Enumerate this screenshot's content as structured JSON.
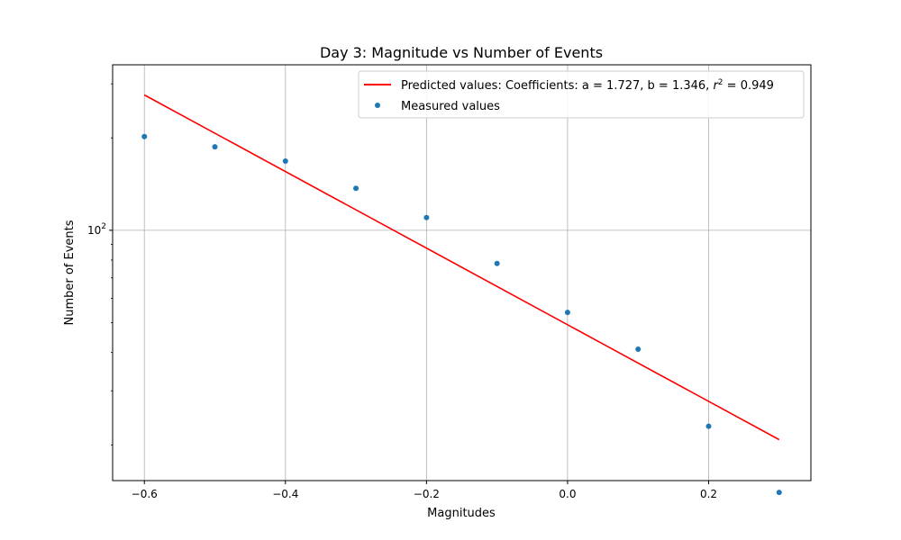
{
  "chart_data": {
    "type": "scatter",
    "title": "Day 3: Magnitude vs Number of Events",
    "xlabel": "Magnitudes",
    "ylabel": "Number of Events",
    "x_scale": "linear",
    "y_scale": "log",
    "xlim": [
      -0.645,
      0.345
    ],
    "ylim": [
      15.3,
      346
    ],
    "x_ticks": [
      -0.6,
      -0.4,
      -0.2,
      0.0,
      0.2
    ],
    "x_tick_labels": [
      "−0.6",
      "−0.4",
      "−0.2",
      "0.0",
      "0.2"
    ],
    "y_ticks": [
      100
    ],
    "y_tick_base": "10",
    "y_tick_exponent": "2",
    "grid": true,
    "legend_placement": "upper right",
    "series": [
      {
        "name": "Predicted values: Coefficients: a = 1.727, b = 1.346, r² = 0.949",
        "legend_prefix": "Predicted values: Coefficients: a = 1.727, b = 1.346, ",
        "legend_r": "r",
        "legend_sup": "2",
        "legend_suffix": " = 0.949",
        "kind": "line",
        "color": "#ff0000",
        "x": [
          -0.6,
          0.3
        ],
        "y": [
          276,
          20.8
        ]
      },
      {
        "name": "Measured values",
        "kind": "scatter",
        "color": "#1f77b4",
        "x": [
          -0.6,
          -0.5,
          -0.4,
          -0.3,
          -0.2,
          -0.1,
          0.0,
          0.1,
          0.2,
          0.3
        ],
        "y": [
          202,
          187,
          168,
          137,
          110,
          78,
          54,
          41,
          23,
          14
        ]
      }
    ]
  }
}
